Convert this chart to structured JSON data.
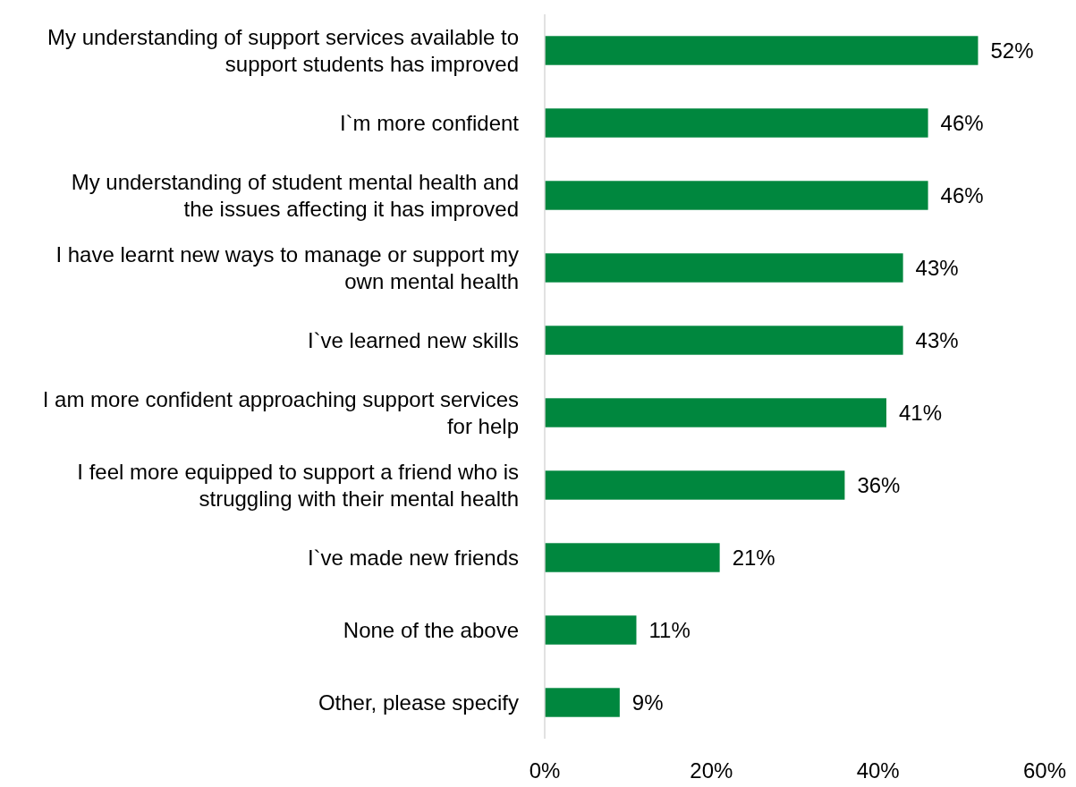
{
  "chart_data": {
    "type": "bar",
    "orientation": "horizontal",
    "categories": [
      "My understanding of support services available to support students has improved",
      "I`m more confident",
      "My understanding of student mental health and the issues affecting it has improved",
      "I have learnt new ways to manage or support my own mental health",
      "I`ve learned new skills",
      "I am more confident approaching support services for help",
      "I feel more equipped to support a friend who is struggling with their mental health",
      "I`ve made new friends",
      "None of the above",
      "Other, please specify"
    ],
    "values": [
      52,
      46,
      46,
      43,
      43,
      41,
      36,
      21,
      11,
      9
    ],
    "value_labels": [
      "52%",
      "46%",
      "46%",
      "43%",
      "43%",
      "41%",
      "36%",
      "21%",
      "11%",
      "9%"
    ],
    "color": "#00873e",
    "xlim": [
      0,
      60
    ],
    "xticks": [
      {
        "value": 0,
        "label": "0%"
      },
      {
        "value": 20,
        "label": "20%"
      },
      {
        "value": 40,
        "label": "40%"
      },
      {
        "value": 60,
        "label": "60%"
      }
    ],
    "grid": false
  }
}
